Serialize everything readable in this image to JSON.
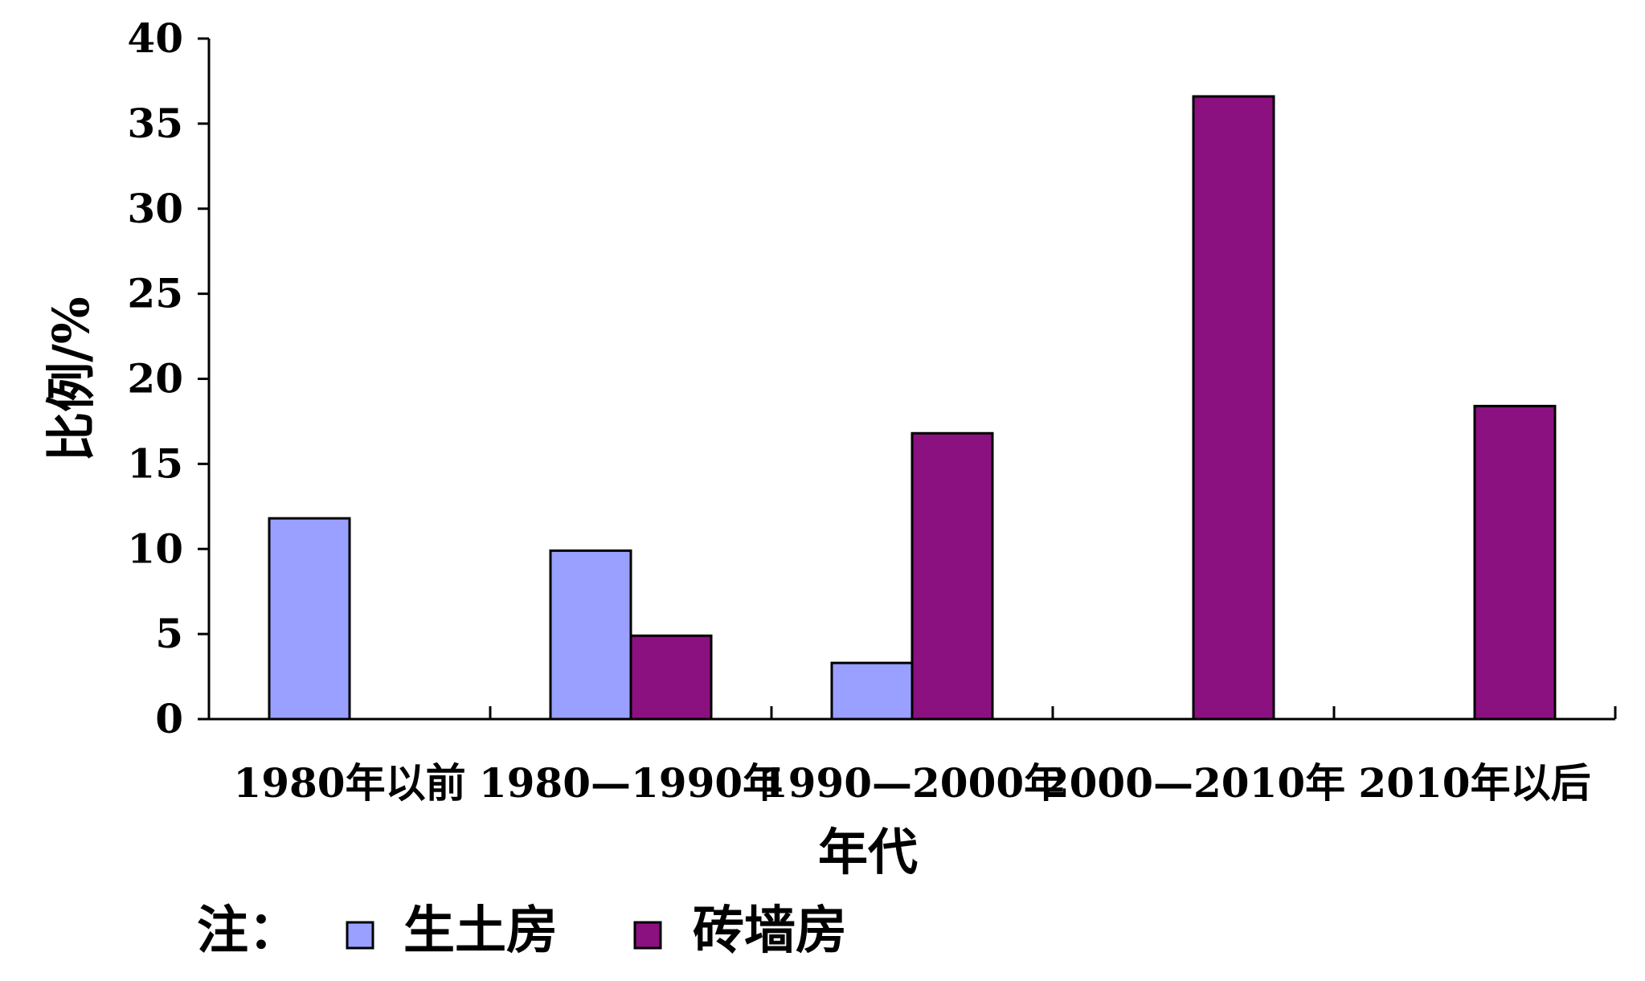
{
  "chart_data": {
    "type": "bar",
    "categories": [
      "1980年以前",
      "1980—1990年",
      "1990—2000年",
      "2000—2010年",
      "2010年以后"
    ],
    "series": [
      {
        "name": "生土房",
        "values": [
          11.8,
          9.9,
          3.3,
          0,
          0
        ],
        "color": "#9aa0ff"
      },
      {
        "name": "砖墙房",
        "values": [
          0,
          4.9,
          16.8,
          36.6,
          18.4
        ],
        "color": "#8b1180"
      }
    ],
    "xlabel": "年代",
    "ylabel": "比例/%",
    "ylim": [
      0,
      40
    ],
    "yticks": [
      "0",
      "5",
      "10",
      "15",
      "20",
      "25",
      "30",
      "35",
      "40"
    ],
    "grid": false,
    "legend_prefix": "注：",
    "legend_position": "bottom-left"
  }
}
